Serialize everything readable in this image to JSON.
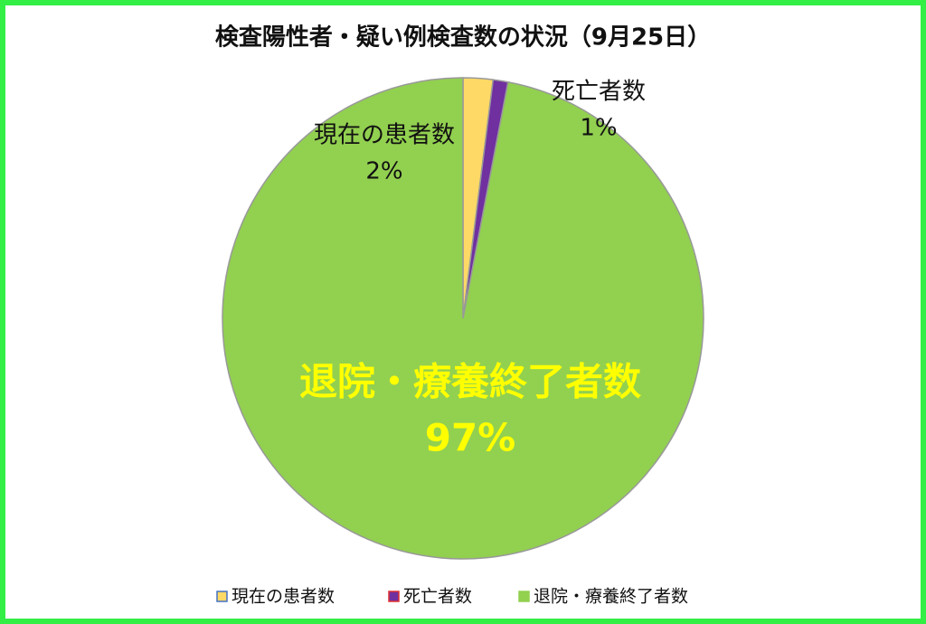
{
  "chart_data": {
    "type": "pie",
    "title": "検査陽性者・疑い例検査数の状況（9月25日）",
    "categories": [
      "現在の患者数",
      "死亡者数",
      "退院・療養終了者数"
    ],
    "values": [
      2,
      1,
      97
    ],
    "value_labels": [
      "2%",
      "1%",
      "97%"
    ],
    "colors": [
      "#ffd966",
      "#7030a0",
      "#92d050"
    ],
    "edgecolors": [
      "#4472c4",
      "#e03030",
      "#92d050"
    ],
    "legend": "bottom"
  }
}
